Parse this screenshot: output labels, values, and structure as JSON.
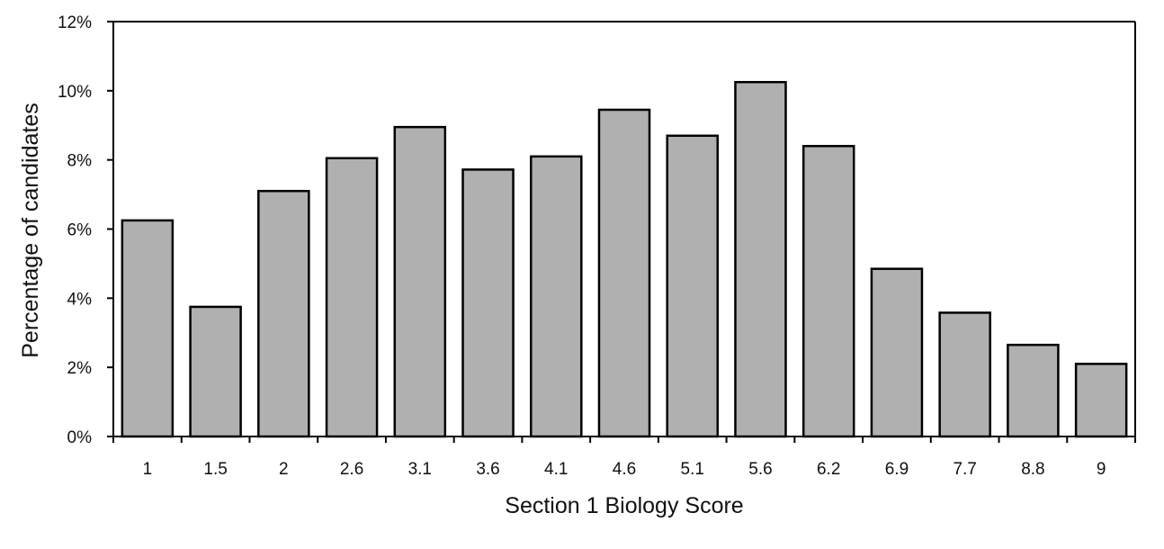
{
  "chart_data": {
    "type": "bar",
    "title": "",
    "xlabel": "Section 1 Biology Score",
    "ylabel": "Percentage of candidates",
    "categories": [
      "1",
      "1.5",
      "2",
      "2.6",
      "3.1",
      "3.6",
      "4.1",
      "4.6",
      "5.1",
      "5.6",
      "6.2",
      "6.9",
      "7.7",
      "8.8",
      "9"
    ],
    "values": [
      6.25,
      3.75,
      7.1,
      8.05,
      8.95,
      7.72,
      8.1,
      9.45,
      8.7,
      10.25,
      8.4,
      4.85,
      3.58,
      2.65,
      2.1
    ],
    "ylim": [
      0,
      12
    ],
    "yticks": [
      0,
      2,
      4,
      6,
      8,
      10,
      12
    ],
    "ytick_format": "%",
    "grid": false,
    "legend": "none",
    "colors": {
      "bar_fill": "#b0b0b0",
      "bar_stroke": "#000000"
    }
  }
}
